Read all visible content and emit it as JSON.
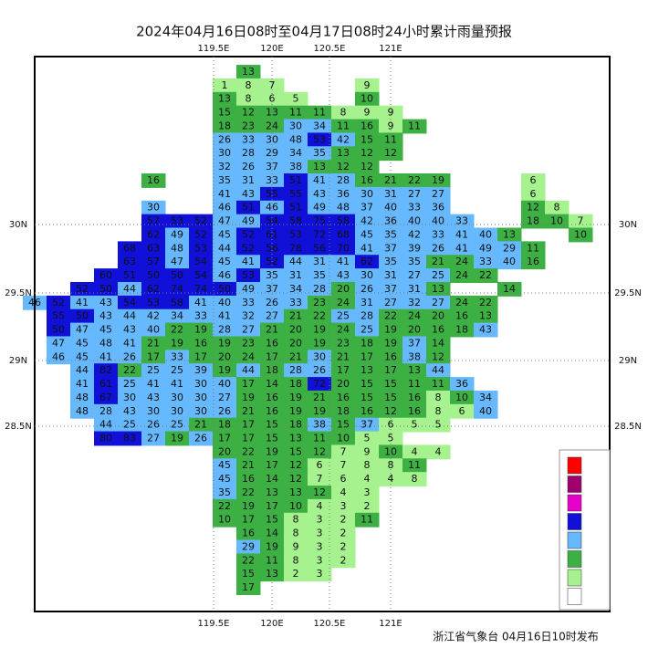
{
  "header": {
    "title": "2024年04月16日08时至04月17日08时24小时累计雨量预报"
  },
  "lon_labels": [
    "119.5E",
    "120E",
    "120.5E",
    "121E"
  ],
  "lat_labels": [
    "30N",
    "29.5N",
    "29N",
    "28.5N"
  ],
  "legend": {
    "colors": [
      "#ff0000",
      "#a0006e",
      "#e600c8",
      "#1010d8",
      "#66b8ff",
      "#3cb043",
      "#a6f28f",
      "#ffffff"
    ]
  },
  "grid_values": [
    [
      null,
      null,
      null,
      null,
      null,
      null,
      null,
      null,
      null,
      13
    ],
    [
      null,
      null,
      null,
      null,
      null,
      null,
      null,
      null,
      1,
      8,
      7,
      null,
      null,
      null,
      9
    ],
    [
      null,
      null,
      null,
      null,
      null,
      null,
      null,
      null,
      13,
      8,
      6,
      5,
      null,
      null,
      10
    ],
    [
      null,
      null,
      null,
      null,
      null,
      null,
      null,
      null,
      15,
      12,
      13,
      11,
      11,
      8,
      9,
      9
    ],
    [
      null,
      null,
      null,
      null,
      null,
      null,
      null,
      null,
      18,
      23,
      24,
      30,
      34,
      11,
      16,
      9,
      11
    ],
    [
      null,
      null,
      null,
      null,
      null,
      null,
      null,
      null,
      26,
      33,
      30,
      48,
      53,
      42,
      15,
      11
    ],
    [
      null,
      null,
      null,
      null,
      null,
      null,
      null,
      null,
      30,
      28,
      29,
      34,
      35,
      13,
      12,
      12
    ],
    [
      null,
      null,
      null,
      null,
      null,
      null,
      null,
      null,
      32,
      26,
      37,
      38,
      13,
      12,
      12
    ],
    [
      null,
      null,
      null,
      null,
      null,
      16,
      null,
      null,
      35,
      31,
      33,
      51,
      41,
      28,
      16,
      21,
      22,
      19,
      null,
      null,
      null,
      6
    ],
    [
      null,
      null,
      null,
      null,
      null,
      null,
      null,
      null,
      41,
      43,
      55,
      55,
      43,
      36,
      30,
      31,
      27,
      27,
      null,
      null,
      null,
      6
    ],
    [
      null,
      null,
      null,
      null,
      null,
      30,
      null,
      null,
      46,
      51,
      46,
      51,
      49,
      48,
      37,
      40,
      33,
      36,
      null,
      null,
      null,
      12,
      8
    ],
    [
      null,
      null,
      null,
      null,
      null,
      57,
      53,
      52,
      47,
      49,
      54,
      58,
      75,
      58,
      42,
      36,
      40,
      40,
      33,
      null,
      null,
      18,
      10,
      7
    ],
    [
      null,
      null,
      null,
      null,
      null,
      62,
      49,
      52,
      45,
      52,
      61,
      53,
      72,
      68,
      45,
      35,
      42,
      33,
      41,
      40,
      13,
      null,
      null,
      10
    ],
    [
      null,
      null,
      null,
      null,
      68,
      63,
      48,
      53,
      44,
      52,
      56,
      78,
      56,
      70,
      41,
      37,
      39,
      26,
      41,
      49,
      29,
      11
    ],
    [
      null,
      null,
      null,
      null,
      63,
      57,
      47,
      54,
      45,
      41,
      52,
      44,
      31,
      41,
      62,
      35,
      35,
      21,
      24,
      33,
      40,
      16
    ],
    [
      null,
      null,
      null,
      60,
      51,
      50,
      50,
      54,
      46,
      53,
      35,
      31,
      35,
      43,
      30,
      31,
      27,
      25,
      24,
      22
    ],
    [
      null,
      null,
      52,
      50,
      44,
      62,
      74,
      74,
      50,
      49,
      37,
      34,
      28,
      20,
      26,
      37,
      31,
      13,
      null,
      null,
      14
    ],
    [
      46,
      52,
      41,
      43,
      54,
      53,
      58,
      41,
      40,
      33,
      26,
      33,
      23,
      24,
      31,
      27,
      32,
      27,
      24,
      22
    ],
    [
      null,
      55,
      50,
      43,
      44,
      42,
      34,
      33,
      41,
      32,
      27,
      21,
      22,
      25,
      28,
      22,
      24,
      20,
      16,
      13
    ],
    [
      null,
      50,
      47,
      45,
      43,
      40,
      22,
      19,
      28,
      27,
      21,
      20,
      19,
      24,
      25,
      19,
      20,
      16,
      18,
      43
    ],
    [
      null,
      47,
      45,
      48,
      41,
      21,
      19,
      16,
      19,
      23,
      16,
      20,
      19,
      23,
      18,
      19,
      37,
      14
    ],
    [
      null,
      46,
      45,
      41,
      26,
      17,
      33,
      17,
      20,
      24,
      17,
      21,
      30,
      21,
      17,
      16,
      38,
      12
    ],
    [
      null,
      null,
      44,
      82,
      22,
      25,
      25,
      39,
      19,
      44,
      18,
      28,
      26,
      17,
      13,
      17,
      13,
      44
    ],
    [
      null,
      null,
      41,
      61,
      25,
      41,
      41,
      30,
      40,
      17,
      14,
      18,
      72,
      20,
      15,
      15,
      11,
      11,
      36
    ],
    [
      null,
      null,
      48,
      67,
      30,
      43,
      30,
      30,
      27,
      19,
      16,
      19,
      21,
      16,
      15,
      15,
      16,
      8,
      10,
      34
    ],
    [
      null,
      null,
      48,
      28,
      43,
      30,
      30,
      30,
      26,
      21,
      16,
      19,
      19,
      18,
      16,
      12,
      16,
      8,
      6,
      40
    ],
    [
      null,
      null,
      null,
      44,
      25,
      26,
      25,
      21,
      18,
      17,
      15,
      18,
      38,
      15,
      37,
      6,
      5,
      5
    ],
    [
      null,
      null,
      null,
      80,
      83,
      27,
      19,
      26,
      17,
      17,
      15,
      13,
      11,
      10,
      5,
      5
    ],
    [
      null,
      null,
      null,
      null,
      null,
      null,
      null,
      null,
      20,
      22,
      19,
      15,
      12,
      7,
      9,
      10,
      4,
      4
    ],
    [
      null,
      null,
      null,
      null,
      null,
      null,
      null,
      null,
      45,
      21,
      17,
      12,
      6,
      7,
      8,
      8,
      11
    ],
    [
      null,
      null,
      null,
      null,
      null,
      null,
      null,
      null,
      45,
      16,
      14,
      12,
      7,
      6,
      4,
      4,
      8
    ],
    [
      null,
      null,
      null,
      null,
      null,
      null,
      null,
      null,
      35,
      22,
      13,
      13,
      12,
      4,
      3
    ],
    [
      null,
      null,
      null,
      null,
      null,
      null,
      null,
      null,
      22,
      19,
      17,
      10,
      4,
      3,
      2
    ],
    [
      null,
      null,
      null,
      null,
      null,
      null,
      null,
      null,
      10,
      17,
      15,
      8,
      3,
      2,
      11
    ],
    [
      null,
      null,
      null,
      null,
      null,
      null,
      null,
      null,
      null,
      16,
      14,
      8,
      3,
      2
    ],
    [
      null,
      null,
      null,
      null,
      null,
      null,
      null,
      null,
      null,
      29,
      19,
      9,
      3,
      2
    ],
    [
      null,
      null,
      null,
      null,
      null,
      null,
      null,
      null,
      null,
      22,
      11,
      8,
      3,
      2
    ],
    [
      null,
      null,
      null,
      null,
      null,
      null,
      null,
      null,
      null,
      15,
      13,
      2,
      3
    ],
    [
      null,
      null,
      null,
      null,
      null,
      null,
      null,
      null,
      null,
      17
    ]
  ],
  "footer": "浙江省气象台 04月16日10时发布"
}
